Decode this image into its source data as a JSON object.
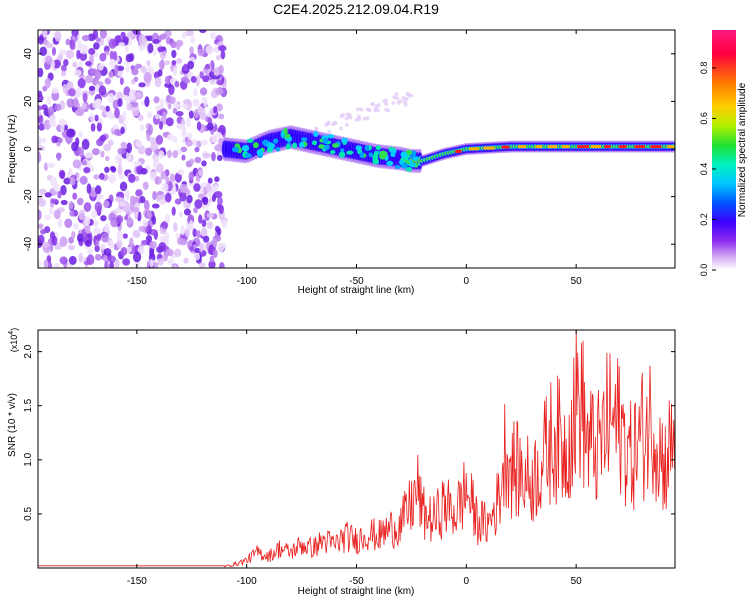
{
  "title": "C2E4.2025.212.09.04.R19",
  "chart_data": [
    {
      "type": "heatmap",
      "xlabel": "Height of straight line (km)",
      "ylabel": "Frequency (Hz)",
      "xlim": [
        -195,
        95
      ],
      "ylim": [
        -50,
        50
      ],
      "x_ticks": [
        -150,
        -100,
        -50,
        0,
        50
      ],
      "y_ticks": [
        -40,
        -20,
        0,
        20,
        40
      ],
      "colorbar": {
        "label": "Normalized spectral amplitude",
        "range": [
          0.0,
          0.95
        ],
        "ticks": [
          0.0,
          0.2,
          0.4,
          0.6,
          0.8
        ],
        "colors": [
          "#ffffff",
          "#d9b3f2",
          "#8e2ef0",
          "#3b00ff",
          "#0055ff",
          "#00c8ff",
          "#00f0c0",
          "#20e030",
          "#b0f000",
          "#ffd000",
          "#ff7a00",
          "#ff0040",
          "#ff1a80"
        ]
      },
      "features": {
        "noise_region_x": [
          -195,
          -110
        ],
        "signal_band_center_hz": [
          [
            -110,
            0
          ],
          [
            -100,
            -1
          ],
          [
            -90,
            3
          ],
          [
            -80,
            5
          ],
          [
            -70,
            3
          ],
          [
            -60,
            1
          ],
          [
            -50,
            -1
          ],
          [
            -40,
            -3
          ],
          [
            -30,
            -4
          ],
          [
            -25,
            -5
          ],
          [
            -20,
            -5
          ],
          [
            -10,
            -2
          ],
          [
            0,
            0
          ],
          [
            20,
            1
          ],
          [
            40,
            1
          ],
          [
            60,
            1
          ],
          [
            80,
            1
          ],
          [
            95,
            1
          ]
        ]
      }
    },
    {
      "type": "line",
      "xlabel": "Height of straight line (km)",
      "ylabel": "SNR (10 * v/v)",
      "y_multiplier": "(x10",
      "y_multiplier_exp": "4",
      "y_multiplier_close": ")",
      "xlim": [
        -195,
        95
      ],
      "ylim": [
        0,
        2.2
      ],
      "x_ticks": [
        -150,
        -100,
        -50,
        0,
        50
      ],
      "y_ticks": [
        0.5,
        1.0,
        1.5,
        2.0
      ],
      "series": [
        {
          "color": "#e8201e",
          "x": [
            -195,
            -110,
            -105,
            -100,
            -95,
            -90,
            -85,
            -80,
            -75,
            -70,
            -65,
            -60,
            -55,
            -50,
            -45,
            -40,
            -35,
            -30,
            -25,
            -22,
            -20,
            -15,
            -10,
            -5,
            0,
            5,
            10,
            15,
            18,
            20,
            25,
            30,
            35,
            40,
            45,
            50,
            52,
            55,
            60,
            65,
            70,
            75,
            80,
            85,
            90,
            95
          ],
          "y": [
            0.02,
            0.02,
            0.05,
            0.1,
            0.2,
            0.15,
            0.25,
            0.2,
            0.3,
            0.25,
            0.35,
            0.3,
            0.4,
            0.35,
            0.45,
            0.4,
            0.5,
            0.55,
            0.8,
            1.0,
            0.7,
            0.6,
            0.8,
            0.7,
            1.0,
            0.6,
            0.55,
            0.9,
            1.6,
            1.3,
            1.2,
            1.1,
            1.4,
            1.7,
            1.5,
            2.1,
            2.2,
            1.6,
            1.5,
            1.9,
            1.8,
            1.4,
            1.7,
            1.9,
            1.3,
            1.7
          ]
        }
      ]
    }
  ]
}
